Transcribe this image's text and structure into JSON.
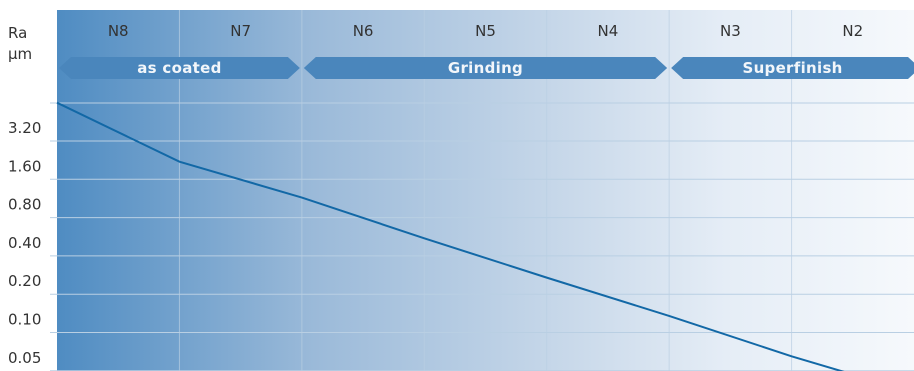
{
  "chart_data": {
    "type": "line",
    "ylabel": "Ra",
    "yunit": "µm",
    "y_scale": "log2",
    "y_ticks": [
      "3.20",
      "1.60",
      "0.80",
      "0.40",
      "0.20",
      "0.10",
      "0.05"
    ],
    "y_tick_values": [
      3.2,
      1.6,
      0.8,
      0.4,
      0.2,
      0.1,
      0.05
    ],
    "categories": [
      "N8",
      "N7",
      "N6",
      "N5",
      "N4",
      "N3",
      "N2"
    ],
    "processes": [
      {
        "label": "as coated",
        "from": "N8",
        "to": "N7"
      },
      {
        "label": "Grinding",
        "from": "N6",
        "to": "N4"
      },
      {
        "label": "Superfinish",
        "from": "N3",
        "to": "N2"
      }
    ],
    "series": [
      {
        "x": [
          "N8 (start)",
          "N7/N8 boundary",
          "N7/N6 boundary",
          "N6/N5 boundary",
          "N5/N4 boundary",
          "N4/N3 boundary",
          "N3/N2 boundary",
          "N2 (end)"
        ],
        "values": [
          6.4,
          2.2,
          1.15,
          0.55,
          0.27,
          0.135,
          0.065,
          0.045
        ]
      }
    ],
    "grid": true,
    "colors": {
      "line": "#1268a6",
      "band_dark": "#4f8cc2",
      "band_mid": "#a6c2dd",
      "band_light": "#f3f7fb",
      "process_arrow": "#4a86bc",
      "grid": "#b9cfe3"
    }
  }
}
